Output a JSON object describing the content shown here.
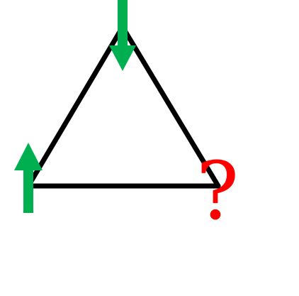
{
  "diagram": {
    "label": "?",
    "colors": {
      "edge": "#000000",
      "arrow": "#00b050",
      "label": "#ff0000",
      "background": "#ffffff"
    },
    "arrows": {
      "top_vertex": "down",
      "left_vertex": "up"
    }
  }
}
